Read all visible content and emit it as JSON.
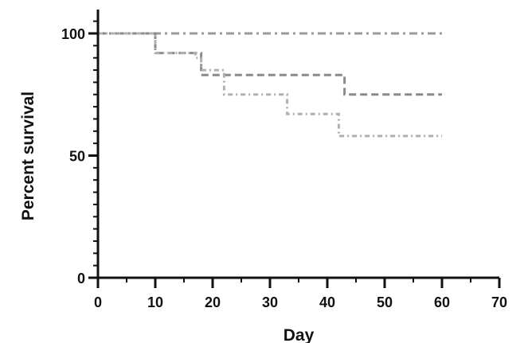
{
  "chart_data": {
    "type": "line",
    "subtype": "kaplan-meier-step",
    "xlabel": "Day",
    "ylabel": "Percent survival",
    "xlim": [
      0,
      70
    ],
    "ylim": [
      0,
      100
    ],
    "x_ticks": [
      0,
      10,
      20,
      30,
      40,
      50,
      60,
      70
    ],
    "y_ticks": [
      0,
      50,
      100
    ],
    "grid": false,
    "legend": "none",
    "series": [
      {
        "x": [
          0,
          60
        ],
        "y": [
          100,
          100
        ],
        "color": "#9a9a9a",
        "dash": "dash-dot"
      },
      {
        "x": [
          0,
          10,
          10,
          18,
          18,
          43,
          43,
          60
        ],
        "y": [
          100,
          100,
          92,
          92,
          83,
          83,
          75,
          75
        ],
        "color": "#8a8a8a",
        "dash": "dashed"
      },
      {
        "x": [
          0,
          10,
          10,
          17,
          17,
          18,
          18,
          22,
          22,
          33,
          33,
          42,
          42,
          60
        ],
        "y": [
          100,
          100,
          92,
          92,
          90,
          90,
          85,
          85,
          75,
          75,
          67,
          67,
          58,
          58
        ],
        "color": "#b0b0b0",
        "dash": "dotted"
      }
    ]
  }
}
